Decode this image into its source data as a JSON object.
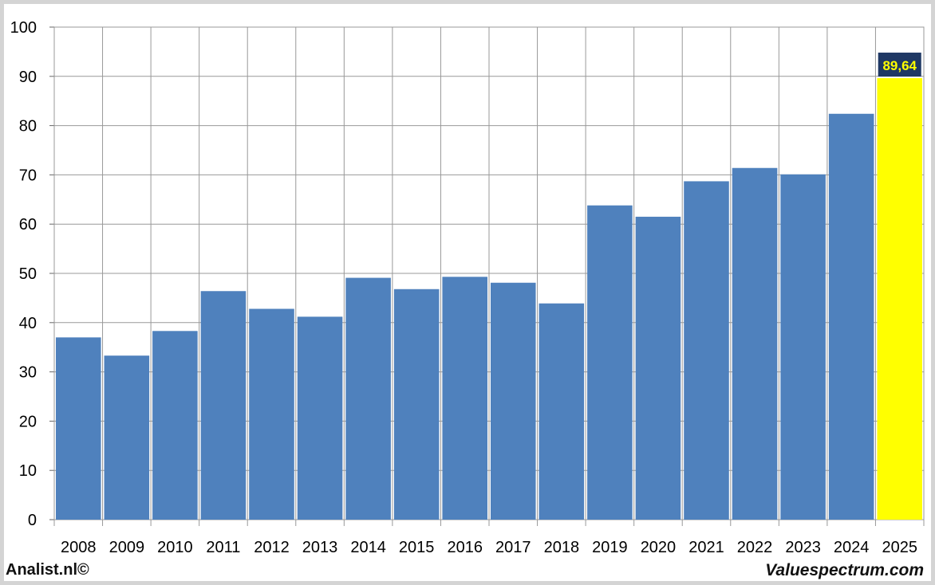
{
  "chart_data": {
    "type": "bar",
    "categories": [
      "2008",
      "2009",
      "2010",
      "2011",
      "2012",
      "2013",
      "2014",
      "2015",
      "2016",
      "2017",
      "2018",
      "2019",
      "2020",
      "2021",
      "2022",
      "2023",
      "2024",
      "2025"
    ],
    "values": [
      37.0,
      33.3,
      38.3,
      46.4,
      42.8,
      41.2,
      49.1,
      46.8,
      49.3,
      48.1,
      43.9,
      63.8,
      61.5,
      68.7,
      71.4,
      70.1,
      82.4,
      89.64
    ],
    "highlight_index": 17,
    "highlight_label": "89,64",
    "ylim": [
      0,
      100
    ],
    "yticks": [
      "0",
      "10",
      "20",
      "30",
      "40",
      "50",
      "60",
      "70",
      "80",
      "90",
      "100"
    ],
    "grid": true,
    "colors": {
      "bar": "#4f81bd",
      "highlight_bar": "#ffff00",
      "highlight_label_bg": "#1f3864",
      "highlight_label_text": "#ffff00",
      "grid": "#999999"
    }
  },
  "footer": {
    "left": "Analist.nl©",
    "right": "Valuespectrum.com"
  }
}
